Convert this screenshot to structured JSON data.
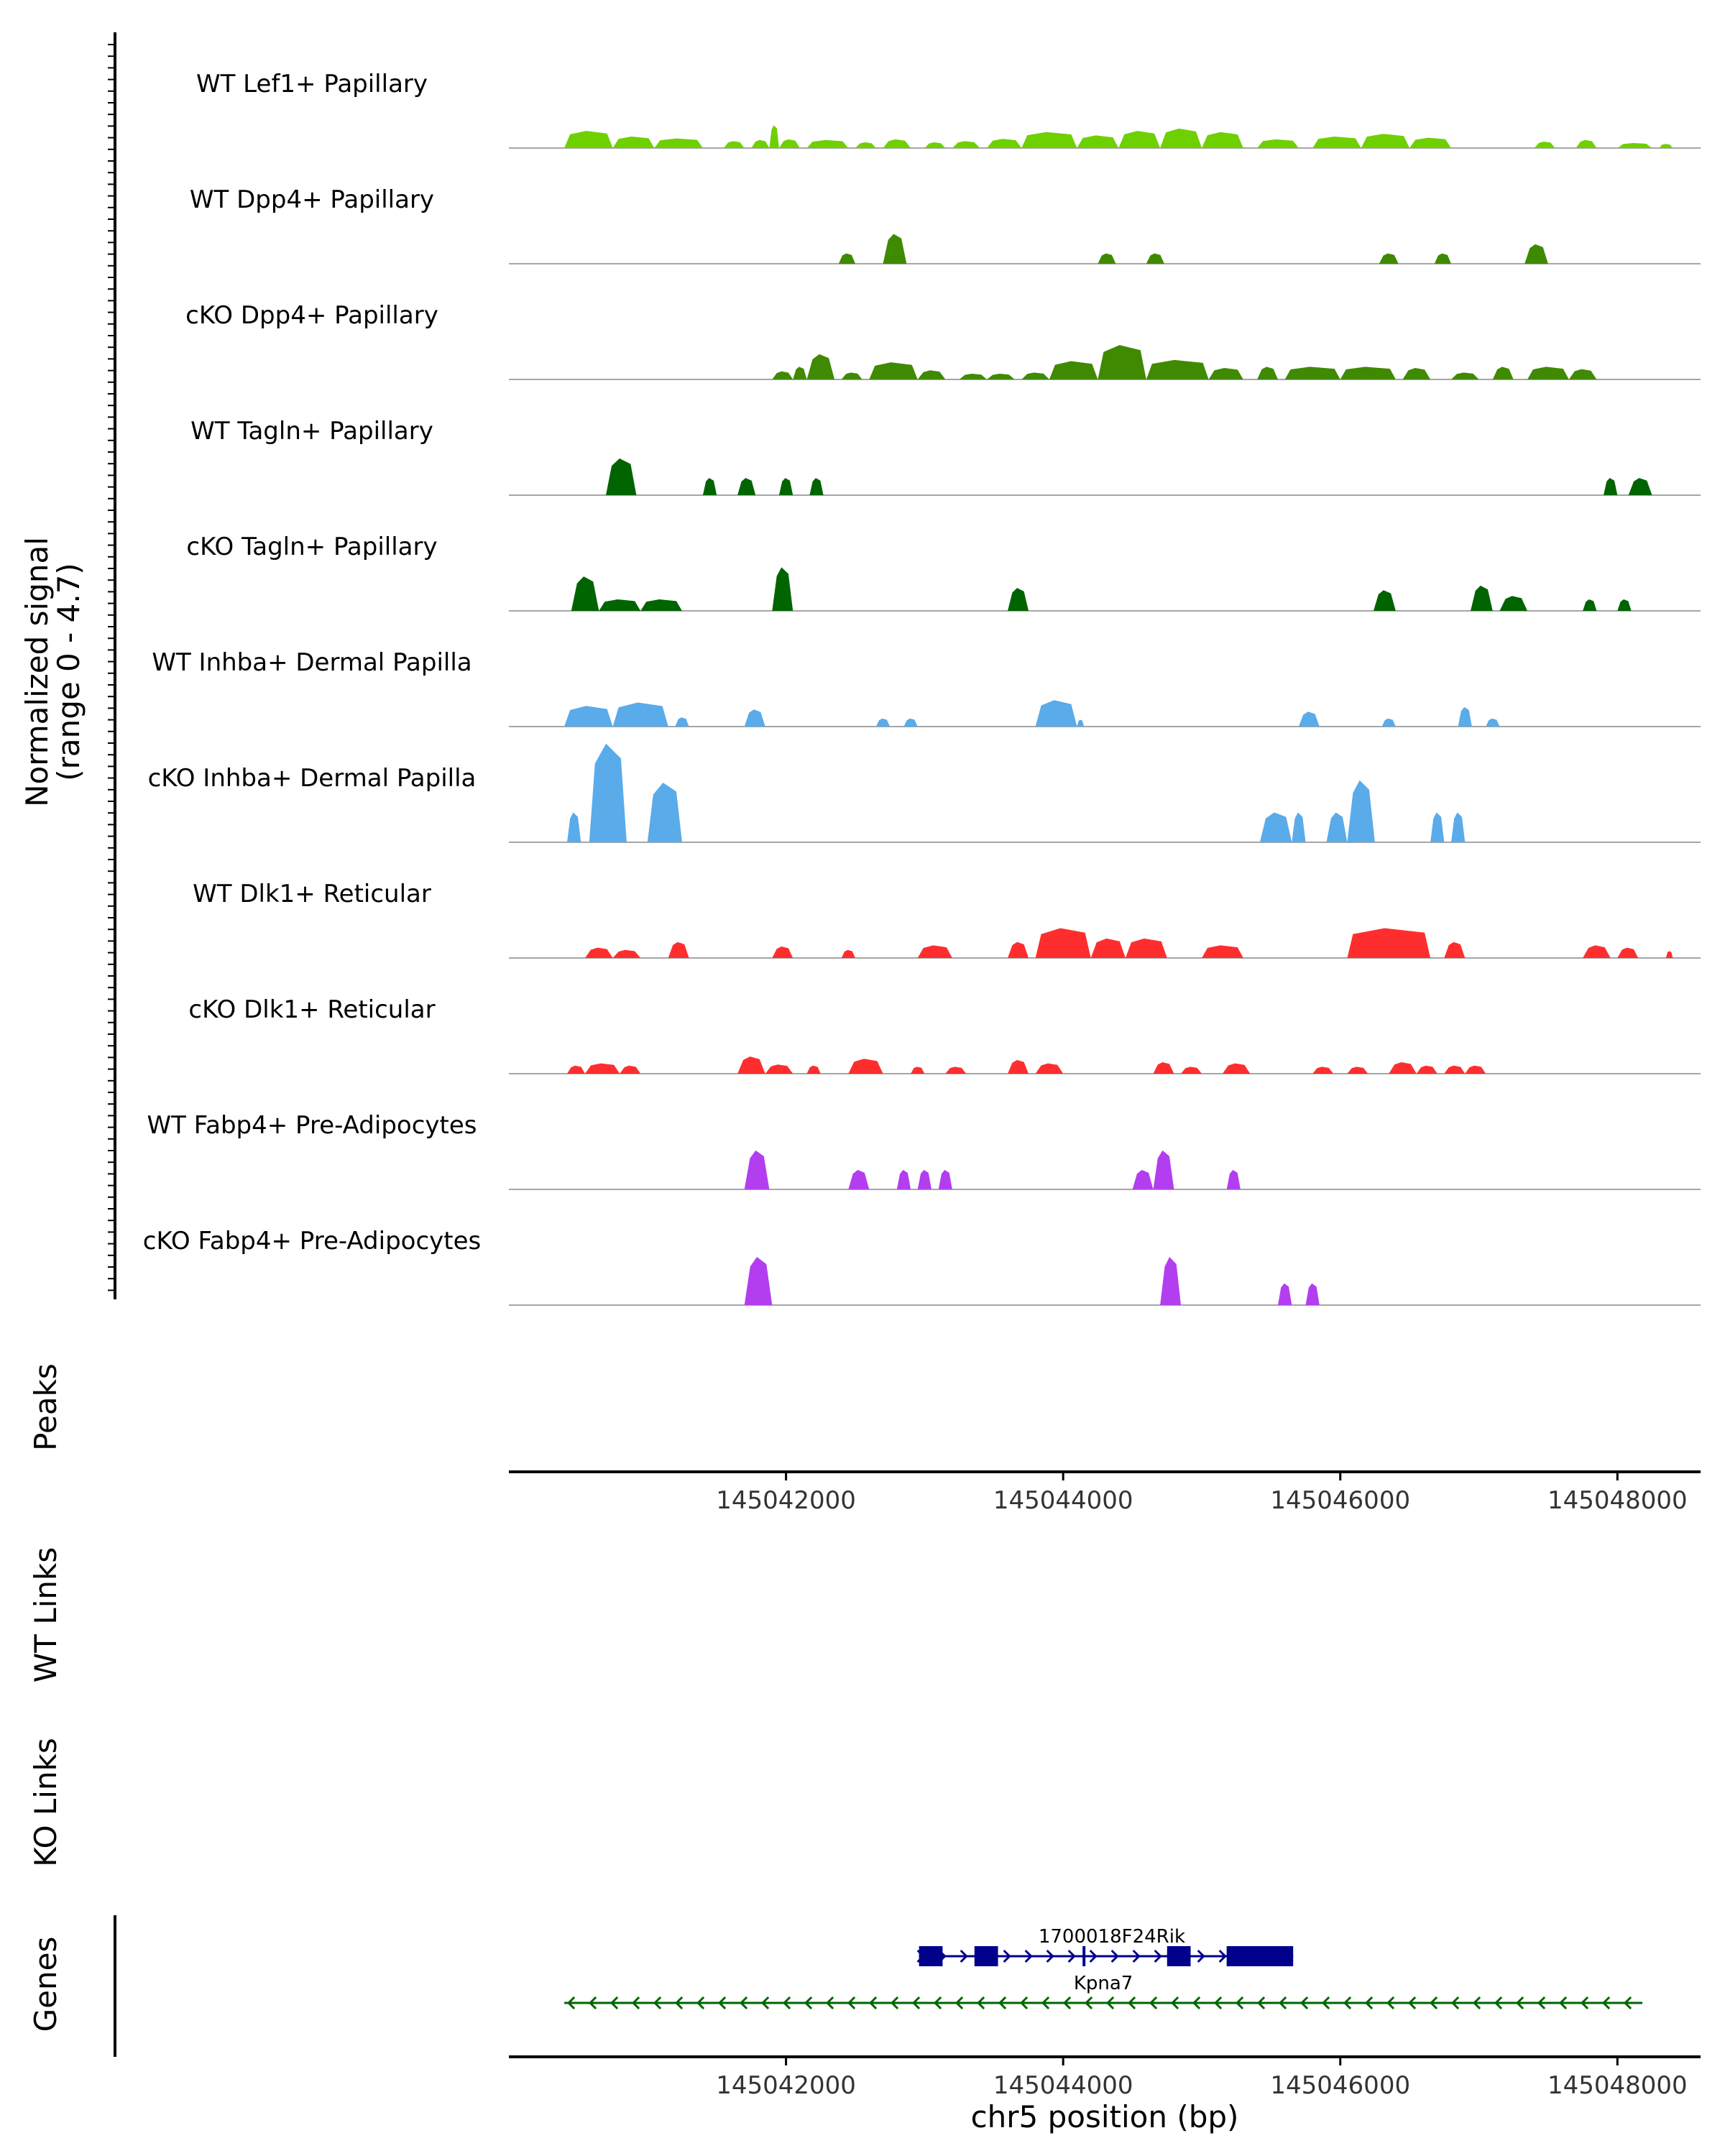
{
  "chart_data": {
    "type": "area",
    "title": "",
    "x_range": [
      145040000,
      145048600
    ],
    "x_ticks": [
      {
        "value": 145042000,
        "label": "145042000"
      },
      {
        "value": 145044000,
        "label": "145044000"
      },
      {
        "value": 145046000,
        "label": "145046000"
      },
      {
        "value": 145048000,
        "label": "145048000"
      }
    ],
    "xlabel": "chr5 position (bp)",
    "ylabel_line1": "Normalized signal",
    "ylabel_line2": "(range 0 - 4.7)",
    "y_range": [
      0,
      4.7
    ],
    "panel_labels": {
      "peaks": "Peaks",
      "wt_links": "WT Links",
      "ko_links": "KO Links",
      "genes": "Genes"
    },
    "colors": {
      "lef1": "#6fd000",
      "dpp4": "#3f8a00",
      "tagln": "#006400",
      "inhba": "#5aabea",
      "dlk1": "#ff2e2e",
      "fabp4": "#b23ef0",
      "gene_plus": "#00008b",
      "gene_minus": "#006400",
      "baseline": "#888888",
      "axis": "#000000"
    },
    "tracks": [
      {
        "name": "WT Lef1+ Papillary",
        "color": "lef1",
        "peaks": [
          [
            145040400,
            145040750,
            0.75
          ],
          [
            145040750,
            145041050,
            0.5
          ],
          [
            145041050,
            145041400,
            0.42
          ],
          [
            145041550,
            145041700,
            0.3
          ],
          [
            145041750,
            145041880,
            0.35
          ],
          [
            145041880,
            145041950,
            1.0
          ],
          [
            145041950,
            145042100,
            0.38
          ],
          [
            145042150,
            145042450,
            0.35
          ],
          [
            145042500,
            145042650,
            0.25
          ],
          [
            145042700,
            145042900,
            0.38
          ],
          [
            145043000,
            145043150,
            0.25
          ],
          [
            145043200,
            145043400,
            0.3
          ],
          [
            145043450,
            145043700,
            0.4
          ],
          [
            145043700,
            145044100,
            0.7
          ],
          [
            145044100,
            145044400,
            0.55
          ],
          [
            145044400,
            145044700,
            0.75
          ],
          [
            145044700,
            145045000,
            0.85
          ],
          [
            145045000,
            145045300,
            0.7
          ],
          [
            145045400,
            145045700,
            0.38
          ],
          [
            145045800,
            145046150,
            0.5
          ],
          [
            145046150,
            145046500,
            0.62
          ],
          [
            145046500,
            145046800,
            0.45
          ],
          [
            145047400,
            145047550,
            0.28
          ],
          [
            145047700,
            145047850,
            0.35
          ],
          [
            145048000,
            145048250,
            0.22
          ],
          [
            145048300,
            145048400,
            0.18
          ]
        ]
      },
      {
        "name": "WT Dpp4+ Papillary",
        "color": "dpp4",
        "peaks": [
          [
            145042380,
            145042500,
            0.45
          ],
          [
            145042700,
            145042870,
            1.3
          ],
          [
            145044250,
            145044380,
            0.45
          ],
          [
            145044600,
            145044730,
            0.45
          ],
          [
            145046280,
            145046420,
            0.45
          ],
          [
            145046680,
            145046800,
            0.45
          ],
          [
            145047330,
            145047500,
            0.85
          ]
        ]
      },
      {
        "name": "cKO Dpp4+ Papillary",
        "color": "dpp4",
        "peaks": [
          [
            145041900,
            145042050,
            0.35
          ],
          [
            145042050,
            145042150,
            0.55
          ],
          [
            145042150,
            145042350,
            1.1
          ],
          [
            145042400,
            145042550,
            0.3
          ],
          [
            145042600,
            145042950,
            0.75
          ],
          [
            145042950,
            145043150,
            0.4
          ],
          [
            145043250,
            145043450,
            0.25
          ],
          [
            145043450,
            145043650,
            0.25
          ],
          [
            145043700,
            145043900,
            0.3
          ],
          [
            145043900,
            145044250,
            0.8
          ],
          [
            145044250,
            145044600,
            1.5
          ],
          [
            145044600,
            145045050,
            0.85
          ],
          [
            145045050,
            145045300,
            0.5
          ],
          [
            145045400,
            145045550,
            0.55
          ],
          [
            145045600,
            145046000,
            0.55
          ],
          [
            145046000,
            145046400,
            0.55
          ],
          [
            145046450,
            145046650,
            0.5
          ],
          [
            145046800,
            145047000,
            0.3
          ],
          [
            145047100,
            145047250,
            0.55
          ],
          [
            145047350,
            145047650,
            0.55
          ],
          [
            145047650,
            145047850,
            0.45
          ]
        ]
      },
      {
        "name": "WT Tagln+ Papillary",
        "color": "tagln",
        "peaks": [
          [
            145040700,
            145040920,
            1.6
          ],
          [
            145041400,
            145041500,
            0.75
          ],
          [
            145041650,
            145041780,
            0.75
          ],
          [
            145041950,
            145042050,
            0.75
          ],
          [
            145042170,
            145042270,
            0.75
          ],
          [
            145047900,
            145048000,
            0.75
          ],
          [
            145048080,
            145048250,
            0.75
          ]
        ]
      },
      {
        "name": "cKO Tagln+ Papillary",
        "color": "tagln",
        "peaks": [
          [
            145040450,
            145040650,
            1.5
          ],
          [
            145040650,
            145040950,
            0.5
          ],
          [
            145040950,
            145041250,
            0.5
          ],
          [
            145041900,
            145042050,
            1.9
          ],
          [
            145043600,
            145043750,
            1.0
          ],
          [
            145046240,
            145046400,
            0.9
          ],
          [
            145046940,
            145047100,
            1.1
          ],
          [
            145047150,
            145047350,
            0.65
          ],
          [
            145047750,
            145047850,
            0.5
          ],
          [
            145048000,
            145048100,
            0.5
          ]
        ]
      },
      {
        "name": "WT Inhba+ Dermal Papilla",
        "color": "inhba",
        "peaks": [
          [
            145040400,
            145040750,
            0.9
          ],
          [
            145040750,
            145041150,
            1.05
          ],
          [
            145041200,
            145041300,
            0.4
          ],
          [
            145041700,
            145041850,
            0.75
          ],
          [
            145042650,
            145042750,
            0.35
          ],
          [
            145042850,
            145042950,
            0.35
          ],
          [
            145043800,
            145044100,
            1.15
          ],
          [
            145044100,
            145044150,
            0.3
          ],
          [
            145045700,
            145045850,
            0.65
          ],
          [
            145046300,
            145046400,
            0.35
          ],
          [
            145046850,
            145046950,
            0.85
          ],
          [
            145047050,
            145047150,
            0.35
          ]
        ]
      },
      {
        "name": "cKO Inhba+ Dermal Papilla",
        "color": "inhba",
        "peaks": [
          [
            145040420,
            145040520,
            1.3
          ],
          [
            145040580,
            145040850,
            4.3
          ],
          [
            145041000,
            145041250,
            2.6
          ],
          [
            145045420,
            145045650,
            1.3
          ],
          [
            145045650,
            145045750,
            1.3
          ],
          [
            145045900,
            145046050,
            1.3
          ],
          [
            145046050,
            145046250,
            2.7
          ],
          [
            145046650,
            145046750,
            1.3
          ],
          [
            145046800,
            145046900,
            1.3
          ]
        ]
      },
      {
        "name": "WT Dlk1+ Reticular",
        "color": "dlk1",
        "peaks": [
          [
            145040550,
            145040750,
            0.45
          ],
          [
            145040750,
            145040950,
            0.35
          ],
          [
            145041150,
            145041300,
            0.7
          ],
          [
            145041900,
            145042050,
            0.5
          ],
          [
            145042400,
            145042500,
            0.35
          ],
          [
            145042950,
            145043200,
            0.55
          ],
          [
            145043600,
            145043750,
            0.7
          ],
          [
            145043800,
            145044200,
            1.3
          ],
          [
            145044200,
            145044450,
            0.85
          ],
          [
            145044450,
            145044750,
            0.85
          ],
          [
            145045000,
            145045300,
            0.55
          ],
          [
            145046050,
            145046650,
            1.3
          ],
          [
            145046750,
            145046900,
            0.7
          ],
          [
            145047750,
            145047950,
            0.55
          ],
          [
            145048000,
            145048150,
            0.45
          ],
          [
            145048350,
            145048400,
            0.3
          ]
        ]
      },
      {
        "name": "cKO Dlk1+ Reticular",
        "color": "dlk1",
        "peaks": [
          [
            145040420,
            145040550,
            0.35
          ],
          [
            145040550,
            145040800,
            0.45
          ],
          [
            145040800,
            145040950,
            0.35
          ],
          [
            145041650,
            145041850,
            0.75
          ],
          [
            145041850,
            145042050,
            0.4
          ],
          [
            145042150,
            145042250,
            0.35
          ],
          [
            145042450,
            145042700,
            0.65
          ],
          [
            145042900,
            145043000,
            0.3
          ],
          [
            145043150,
            145043300,
            0.3
          ],
          [
            145043600,
            145043750,
            0.6
          ],
          [
            145043800,
            145044000,
            0.45
          ],
          [
            145044650,
            145044800,
            0.5
          ],
          [
            145044850,
            145045000,
            0.3
          ],
          [
            145045150,
            145045350,
            0.45
          ],
          [
            145045800,
            145045950,
            0.3
          ],
          [
            145046050,
            145046200,
            0.3
          ],
          [
            145046350,
            145046550,
            0.5
          ],
          [
            145046550,
            145046700,
            0.35
          ],
          [
            145046750,
            145046900,
            0.35
          ],
          [
            145046900,
            145047050,
            0.35
          ]
        ]
      },
      {
        "name": "WT Fabp4+ Pre-Adipocytes",
        "color": "fabp4",
        "peaks": [
          [
            145041700,
            145041880,
            1.7
          ],
          [
            145042450,
            145042600,
            0.85
          ],
          [
            145042800,
            145042900,
            0.85
          ],
          [
            145042950,
            145043050,
            0.85
          ],
          [
            145043100,
            145043200,
            0.85
          ],
          [
            145044500,
            145044650,
            0.85
          ],
          [
            145044650,
            145044800,
            1.7
          ],
          [
            145045180,
            145045280,
            0.85
          ]
        ]
      },
      {
        "name": "cKO Fabp4+ Pre-Adipocytes",
        "color": "fabp4",
        "peaks": [
          [
            145041700,
            145041900,
            2.1
          ],
          [
            145044700,
            145044850,
            2.1
          ],
          [
            145045550,
            145045650,
            0.95
          ],
          [
            145045750,
            145045850,
            0.95
          ]
        ]
      }
    ],
    "genes": [
      {
        "name": "1700018F24Rik",
        "strand": "+",
        "color": "gene_plus",
        "start": 145042960,
        "end": 145045660,
        "exons": [
          [
            145042960,
            145043130
          ],
          [
            145043360,
            145043530
          ],
          [
            145044140,
            145044160
          ],
          [
            145044750,
            145044920
          ],
          [
            145045180,
            145045660
          ]
        ]
      },
      {
        "name": "Kpna7",
        "strand": "-",
        "color": "gene_minus",
        "start": 145040400,
        "end": 145048180,
        "exons": []
      }
    ]
  }
}
